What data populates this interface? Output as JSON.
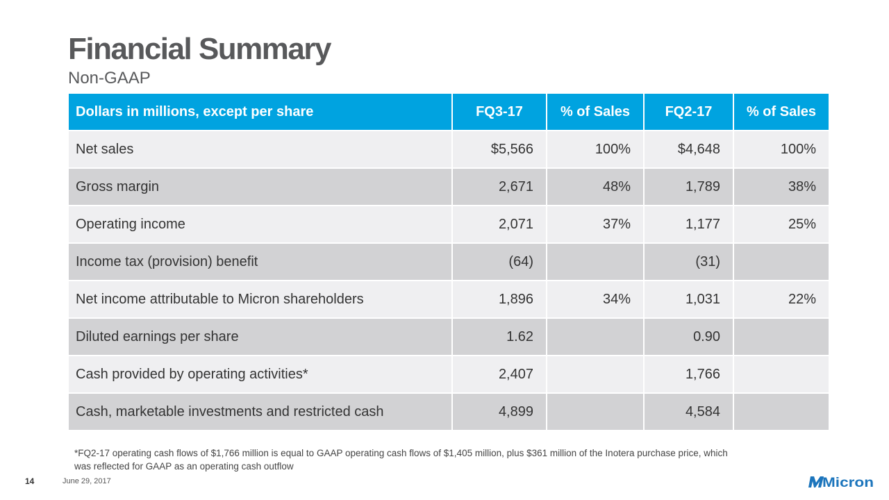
{
  "header": {
    "title": "Financial Summary",
    "subtitle": "Non-GAAP"
  },
  "table": {
    "columns": [
      "Dollars in millions, except per share",
      "FQ3-17",
      "% of Sales",
      "FQ2-17",
      "% of Sales"
    ],
    "rows": [
      [
        "Net sales",
        "$5,566",
        "100%",
        "$4,648",
        "100%"
      ],
      [
        "Gross margin",
        "2,671",
        "48%",
        "1,789",
        "38%"
      ],
      [
        "Operating income",
        "2,071",
        "37%",
        "1,177",
        "25%"
      ],
      [
        "Income tax (provision) benefit",
        "(64)",
        "",
        "(31)",
        ""
      ],
      [
        "Net income attributable to Micron shareholders",
        "1,896",
        "34%",
        "1,031",
        "22%"
      ],
      [
        "Diluted earnings per share",
        "1.62",
        "",
        "0.90",
        ""
      ],
      [
        "Cash provided by operating activities*",
        "2,407",
        "",
        "1,766",
        ""
      ],
      [
        "Cash, marketable investments and restricted cash",
        "4,899",
        "",
        "4,584",
        ""
      ]
    ]
  },
  "footnote": "*FQ2-17 operating cash flows of $1,766 million is equal to GAAP operating cash flows of $1,405 million, plus $361 million of the Inotera purchase price, which was reflected for GAAP as an operating cash outflow",
  "footer": {
    "page_number": "14",
    "date": "June 29, 2017",
    "logo_text": "Micron"
  },
  "colors": {
    "header_bg": "#00a3e0",
    "row_light": "#efeff1",
    "row_dark": "#d2d2d4",
    "logo_blue": "#1c75bc"
  }
}
